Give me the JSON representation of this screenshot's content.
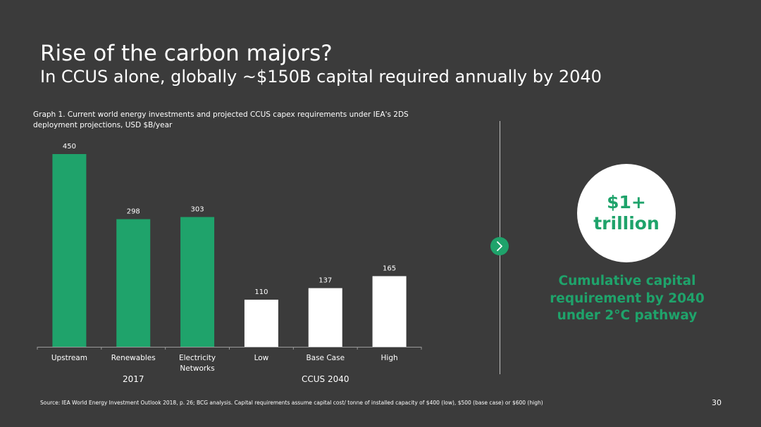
{
  "slide": {
    "title": "Rise of the carbon majors?",
    "subtitle": "In CCUS alone, globally ~$150B capital required annually by 2040",
    "source": "Source: IEA World Energy Investment Outlook 2018, p. 26; BCG analysis. Capital requirements assume capital cost/ tonne of installed capacity of $400 (low), $500 (base case) or $600 (high)",
    "page_number": "30"
  },
  "callout": {
    "amount_line1": "$1+",
    "amount_line2": "trillion",
    "description": "Cumulative capital requirement by 2040 under 2°C pathway",
    "icon": "chevron-right-icon"
  },
  "colors": {
    "background": "#3b3b3b",
    "accent_green": "#1fa36b",
    "bar_white": "#ffffff"
  },
  "chart_data": {
    "type": "bar",
    "title": "Graph 1. Current world energy investments and projected CCUS capex requirements under IEA's 2DS deployment projections, USD $B/year",
    "categories": [
      "Upstream",
      "Renewables",
      "Electricity\nNetworks",
      "Low",
      "Base Case",
      "High"
    ],
    "values": [
      450,
      298,
      303,
      110,
      137,
      165
    ],
    "bar_colors": [
      "#1fa36b",
      "#1fa36b",
      "#1fa36b",
      "#ffffff",
      "#ffffff",
      "#ffffff"
    ],
    "groups": [
      {
        "label": "2017",
        "categories": [
          0,
          1,
          2
        ]
      },
      {
        "label": "CCUS 2040",
        "categories": [
          3,
          4,
          5
        ]
      }
    ],
    "ylim": [
      0,
      450
    ],
    "grid": false,
    "legend": "none"
  }
}
